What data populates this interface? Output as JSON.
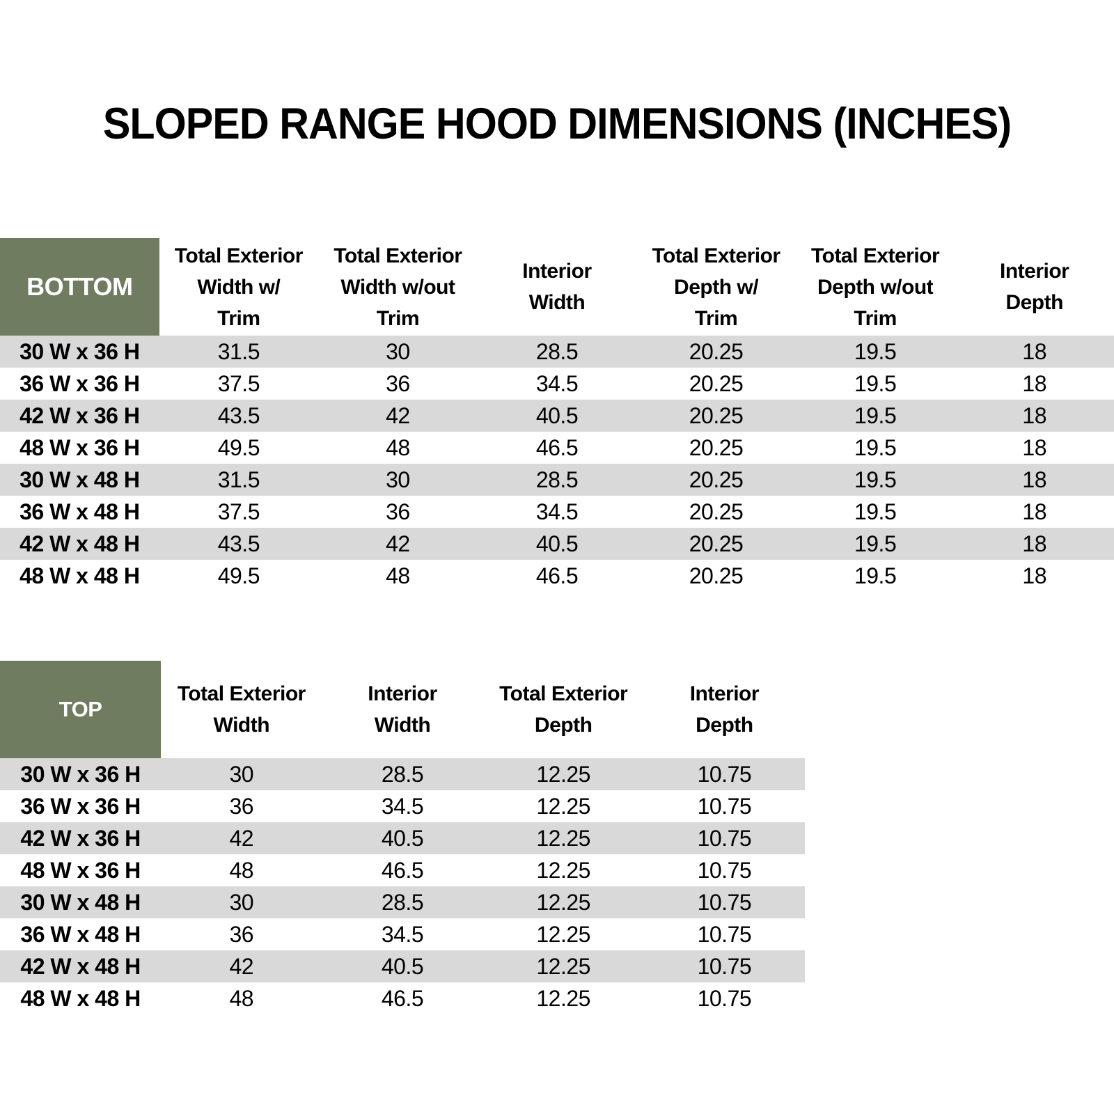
{
  "title": "SLOPED RANGE HOOD DIMENSIONS (INCHES)",
  "colors": {
    "corner_header_green": "#6F7C60",
    "row_stripe_gray": "#D9D9D9",
    "header_text_white": "#FFFFFF",
    "body_text_black": "#000000"
  },
  "bottom_table": {
    "corner_label": "BOTTOM",
    "columns": [
      "Total Exterior\nWidth w/\nTrim",
      "Total Exterior\nWidth w/out\nTrim",
      "Interior\nWidth",
      "Total Exterior\nDepth w/\nTrim",
      "Total Exterior\nDepth w/out\nTrim",
      "Interior\nDepth"
    ],
    "rows": [
      {
        "label": "30 W x 36 H",
        "values": [
          "31.5",
          "30",
          "28.5",
          "20.25",
          "19.5",
          "18"
        ]
      },
      {
        "label": "36 W x 36 H",
        "values": [
          "37.5",
          "36",
          "34.5",
          "20.25",
          "19.5",
          "18"
        ]
      },
      {
        "label": "42 W x 36 H",
        "values": [
          "43.5",
          "42",
          "40.5",
          "20.25",
          "19.5",
          "18"
        ]
      },
      {
        "label": "48 W x 36 H",
        "values": [
          "49.5",
          "48",
          "46.5",
          "20.25",
          "19.5",
          "18"
        ]
      },
      {
        "label": "30 W x 48 H",
        "values": [
          "31.5",
          "30",
          "28.5",
          "20.25",
          "19.5",
          "18"
        ]
      },
      {
        "label": "36 W x 48 H",
        "values": [
          "37.5",
          "36",
          "34.5",
          "20.25",
          "19.5",
          "18"
        ]
      },
      {
        "label": "42 W x 48 H",
        "values": [
          "43.5",
          "42",
          "40.5",
          "20.25",
          "19.5",
          "18"
        ]
      },
      {
        "label": "48 W x 48 H",
        "values": [
          "49.5",
          "48",
          "46.5",
          "20.25",
          "19.5",
          "18"
        ]
      }
    ]
  },
  "top_table": {
    "corner_label": "TOP",
    "columns": [
      "Total Exterior\nWidth",
      "Interior\nWidth",
      "Total Exterior\nDepth",
      "Interior\nDepth"
    ],
    "rows": [
      {
        "label": "30 W x 36 H",
        "values": [
          "30",
          "28.5",
          "12.25",
          "10.75"
        ]
      },
      {
        "label": "36 W x 36 H",
        "values": [
          "36",
          "34.5",
          "12.25",
          "10.75"
        ]
      },
      {
        "label": "42 W x 36 H",
        "values": [
          "42",
          "40.5",
          "12.25",
          "10.75"
        ]
      },
      {
        "label": "48 W x 36 H",
        "values": [
          "48",
          "46.5",
          "12.25",
          "10.75"
        ]
      },
      {
        "label": "30 W x 48 H",
        "values": [
          "30",
          "28.5",
          "12.25",
          "10.75"
        ]
      },
      {
        "label": "36 W x 48 H",
        "values": [
          "36",
          "34.5",
          "12.25",
          "10.75"
        ]
      },
      {
        "label": "42 W x 48 H",
        "values": [
          "42",
          "40.5",
          "12.25",
          "10.75"
        ]
      },
      {
        "label": "48 W x 48 H",
        "values": [
          "48",
          "46.5",
          "12.25",
          "10.75"
        ]
      }
    ]
  },
  "chart_data": {
    "type": "table",
    "title": "SLOPED RANGE HOOD DIMENSIONS (INCHES)"
  }
}
